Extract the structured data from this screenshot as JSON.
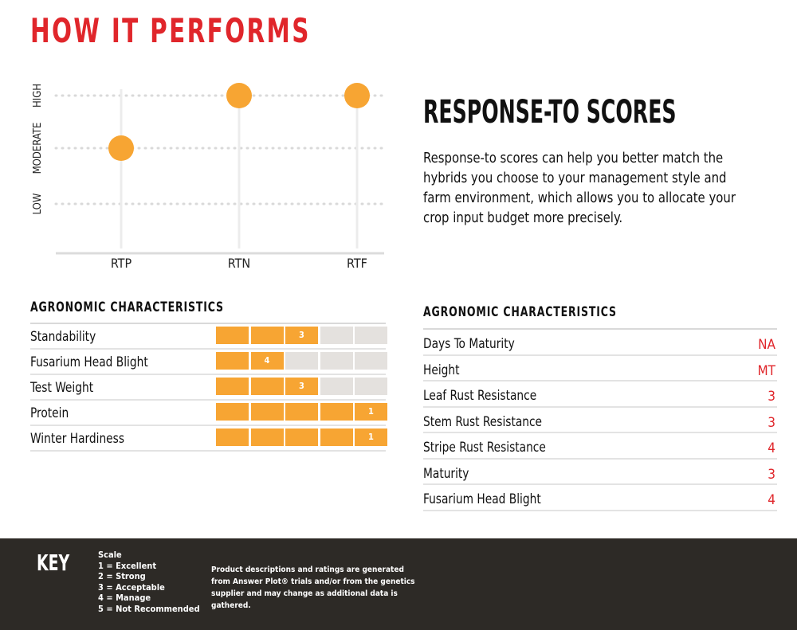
{
  "page_title": "HOW IT PERFORMS",
  "chart_data": {
    "type": "scatter",
    "categories": [
      "RTP",
      "RTN",
      "RTF"
    ],
    "y_levels": [
      "LOW",
      "MODERATE",
      "HIGH"
    ],
    "values": [
      "MODERATE",
      "HIGH",
      "HIGH"
    ],
    "dot_color": "#f7a533"
  },
  "response_to": {
    "heading": "RESPONSE-TO SCORES",
    "body": "Response-to scores can help you better match the hybrids you choose to your management style and farm environment, which allows you to allocate your crop input budget more precisely."
  },
  "left_table": {
    "heading": "AGRONOMIC CHARACTERISTICS",
    "rows": [
      {
        "label": "Standability",
        "score": "3"
      },
      {
        "label": "Fusarium Head Blight",
        "score": "4"
      },
      {
        "label": "Test Weight",
        "score": "3"
      },
      {
        "label": "Protein",
        "score": "1"
      },
      {
        "label": "Winter Hardiness",
        "score": "1"
      }
    ]
  },
  "right_table": {
    "heading": "AGRONOMIC CHARACTERISTICS",
    "rows": [
      {
        "label": "Days To Maturity",
        "value": "NA"
      },
      {
        "label": "Height",
        "value": "MT"
      },
      {
        "label": "Leaf Rust Resistance",
        "value": "3"
      },
      {
        "label": "Stem Rust Resistance",
        "value": "3"
      },
      {
        "label": "Stripe Rust Resistance",
        "value": "4"
      },
      {
        "label": "Maturity",
        "value": "3"
      },
      {
        "label": "Fusarium Head Blight",
        "value": "4"
      }
    ]
  },
  "key": {
    "title": "KEY",
    "scale_title": "Scale",
    "scale": [
      "1 = Excellent",
      "2 = Strong",
      "3 = Acceptable",
      "4 = Manage",
      "5 = Not Recommended"
    ],
    "disclaimer": "Product descriptions and ratings are generated from Answer Plot® trials and/or from the genetics supplier and may change as additional data is gathered."
  },
  "colors": {
    "accent": "#e0262b",
    "bar_on": "#f7a533",
    "bar_off": "#e4e1de",
    "footer_bg": "#2d2a26"
  }
}
